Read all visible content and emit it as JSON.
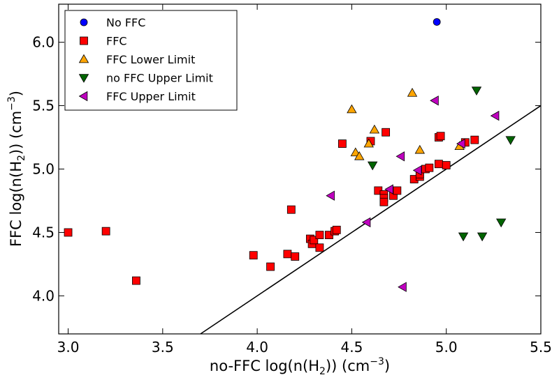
{
  "chart_data": {
    "type": "scatter",
    "title": "",
    "xlabel": "no-FFC log(n(H",
    "xlabel_sub": "2",
    "xlabel_tail": ")) (cm",
    "xlabel_sup": "−3",
    "xlabel_end": ")",
    "ylabel": "FFC log(n(H",
    "ylabel_sub": "2",
    "ylabel_tail": ")) (cm",
    "ylabel_sup": "−3",
    "ylabel_end": ")",
    "xlim": [
      2.95,
      5.5
    ],
    "ylim": [
      3.7,
      6.3
    ],
    "xticks": [
      3.0,
      3.5,
      4.0,
      4.5,
      5.0,
      5.5
    ],
    "xtick_labels": [
      "3.0",
      "3.5",
      "4.0",
      "4.5",
      "5.0",
      "5.5"
    ],
    "yticks": [
      4.0,
      4.5,
      5.0,
      5.5,
      6.0
    ],
    "ytick_labels": [
      "4.0",
      "4.5",
      "5.0",
      "5.5",
      "6.0"
    ],
    "grid": false,
    "legend_position": "top-left",
    "reference_line": {
      "label": "y = x",
      "points": [
        [
          3.7,
          3.7
        ],
        [
          5.5,
          5.5
        ]
      ],
      "color": "#000000"
    },
    "series": [
      {
        "name": "No FFC",
        "marker": "circle",
        "color": "#0000ff",
        "points": [
          [
            4.95,
            6.16
          ]
        ]
      },
      {
        "name": "FFC",
        "marker": "square",
        "color": "#ff0000",
        "points": [
          [
            3.0,
            4.5
          ],
          [
            3.2,
            4.51
          ],
          [
            3.36,
            4.12
          ],
          [
            3.98,
            4.32
          ],
          [
            4.07,
            4.23
          ],
          [
            4.16,
            4.33
          ],
          [
            4.18,
            4.68
          ],
          [
            4.2,
            4.31
          ],
          [
            4.28,
            4.45
          ],
          [
            4.29,
            4.41
          ],
          [
            4.3,
            4.44
          ],
          [
            4.33,
            4.48
          ],
          [
            4.33,
            4.38
          ],
          [
            4.38,
            4.48
          ],
          [
            4.41,
            4.51
          ],
          [
            4.42,
            4.52
          ],
          [
            4.45,
            5.2
          ],
          [
            4.6,
            5.22
          ],
          [
            4.64,
            4.83
          ],
          [
            4.67,
            4.8
          ],
          [
            4.67,
            4.77
          ],
          [
            4.67,
            4.74
          ],
          [
            4.68,
            5.29
          ],
          [
            4.72,
            4.79
          ],
          [
            4.74,
            4.83
          ],
          [
            4.83,
            4.92
          ],
          [
            4.86,
            4.94
          ],
          [
            4.86,
            4.96
          ],
          [
            4.89,
            5.0
          ],
          [
            4.91,
            5.01
          ],
          [
            4.96,
            5.04
          ],
          [
            4.96,
            5.25
          ],
          [
            4.97,
            5.26
          ],
          [
            5.0,
            5.03
          ],
          [
            5.1,
            5.21
          ],
          [
            5.15,
            5.23
          ]
        ]
      },
      {
        "name": "FFC Lower Limit",
        "marker": "triangle-up",
        "color": "#ffa500",
        "points": [
          [
            4.5,
            5.47
          ],
          [
            4.52,
            5.13
          ],
          [
            4.54,
            5.1
          ],
          [
            4.59,
            5.2
          ],
          [
            4.62,
            5.31
          ],
          [
            4.82,
            5.6
          ],
          [
            4.86,
            5.15
          ],
          [
            5.07,
            5.18
          ]
        ]
      },
      {
        "name": "no FFC Upper Limit",
        "marker": "triangle-down",
        "color": "#006400",
        "points": [
          [
            4.61,
            5.03
          ],
          [
            5.09,
            4.47
          ],
          [
            5.16,
            5.62
          ],
          [
            5.19,
            4.47
          ],
          [
            5.29,
            4.58
          ],
          [
            5.34,
            5.23
          ]
        ]
      },
      {
        "name": "FFC Upper Limit",
        "marker": "triangle-left",
        "color": "#bf00bf",
        "points": [
          [
            4.39,
            4.79
          ],
          [
            4.58,
            4.58
          ],
          [
            4.7,
            4.84
          ],
          [
            4.76,
            5.1
          ],
          [
            4.77,
            4.07
          ],
          [
            4.85,
            4.99
          ],
          [
            4.94,
            5.54
          ],
          [
            5.08,
            5.2
          ],
          [
            5.26,
            5.42
          ]
        ]
      }
    ]
  }
}
